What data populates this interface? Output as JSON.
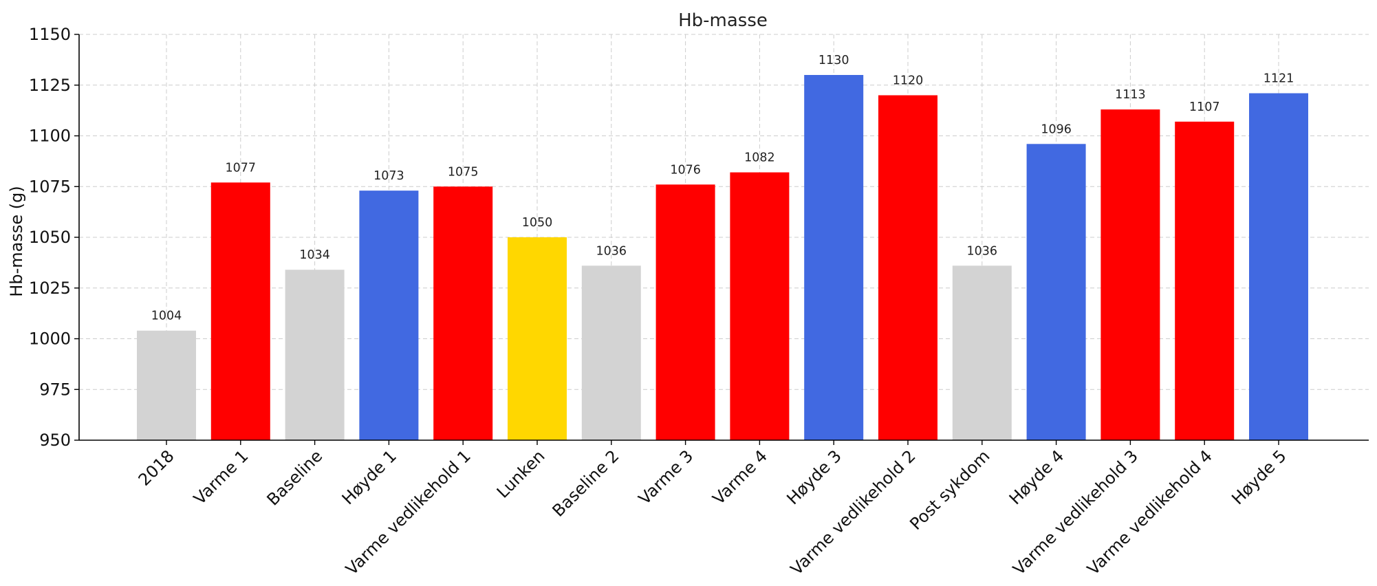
{
  "chart_data": {
    "type": "bar",
    "title": "Hb-masse",
    "xlabel": "",
    "ylabel": "Hb-masse (g)",
    "ylim": [
      950,
      1150
    ],
    "yticks": [
      950,
      975,
      1000,
      1025,
      1050,
      1075,
      1100,
      1125,
      1150
    ],
    "grid": true,
    "categories": [
      "2018",
      "Varme 1",
      "Baseline",
      "Høyde 1",
      "Varme vedlikehold 1",
      "Lunken",
      "Baseline 2",
      "Varme 3",
      "Varme 4",
      "Høyde 3",
      "Varme vedlikehold 2",
      "Post sykdom",
      "Høyde 4",
      "Varme vedlikehold 3",
      "Varme vedlikehold 4",
      "Høyde 5"
    ],
    "values": [
      1004,
      1077,
      1034,
      1073,
      1075,
      1050,
      1036,
      1076,
      1082,
      1130,
      1120,
      1036,
      1096,
      1113,
      1107,
      1121
    ],
    "colors": [
      "#d3d3d3",
      "#ff0000",
      "#d3d3d3",
      "#4169e1",
      "#ff0000",
      "#ffd700",
      "#d3d3d3",
      "#ff0000",
      "#ff0000",
      "#4169e1",
      "#ff0000",
      "#d3d3d3",
      "#4169e1",
      "#ff0000",
      "#ff0000",
      "#4169e1"
    ]
  }
}
